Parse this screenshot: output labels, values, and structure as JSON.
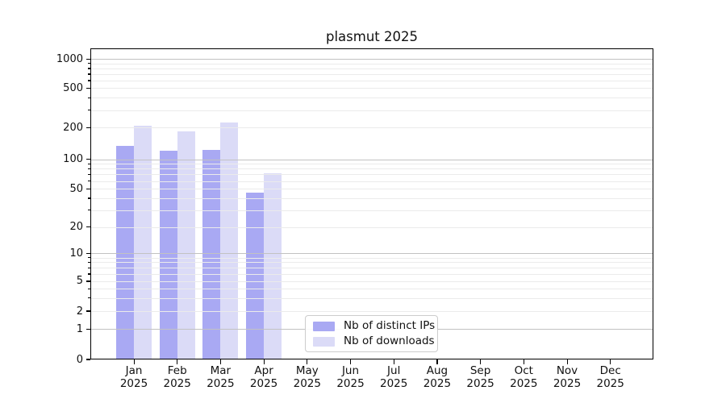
{
  "chart_data": {
    "type": "bar",
    "title": "plasmut 2025",
    "yscale": "symlog",
    "grid": "on",
    "legend_position": "lower center",
    "ylim": [
      0,
      1280
    ],
    "y_ticks": [
      0,
      1,
      2,
      5,
      10,
      20,
      50,
      100,
      200,
      500,
      1000
    ],
    "categories": [
      "Jan 2025",
      "Feb 2025",
      "Mar 2025",
      "Apr 2025",
      "May 2025",
      "Jun 2025",
      "Jul 2025",
      "Aug 2025",
      "Sep 2025",
      "Oct 2025",
      "Nov 2025",
      "Dec 2025"
    ],
    "series": [
      {
        "name": "Nb of distinct IPs",
        "color": "#a9a9f3",
        "values": [
          134,
          121,
          122,
          46,
          null,
          null,
          null,
          null,
          null,
          null,
          null,
          null
        ]
      },
      {
        "name": "Nb of downloads",
        "color": "#dbdbf7",
        "values": [
          209,
          184,
          223,
          72,
          null,
          null,
          null,
          null,
          null,
          null,
          null,
          null
        ]
      }
    ],
    "colors": {
      "major_grid": "#c2c2c2",
      "minor_grid": "#ebebeb",
      "axis": "#000000",
      "text": "#111111"
    }
  }
}
